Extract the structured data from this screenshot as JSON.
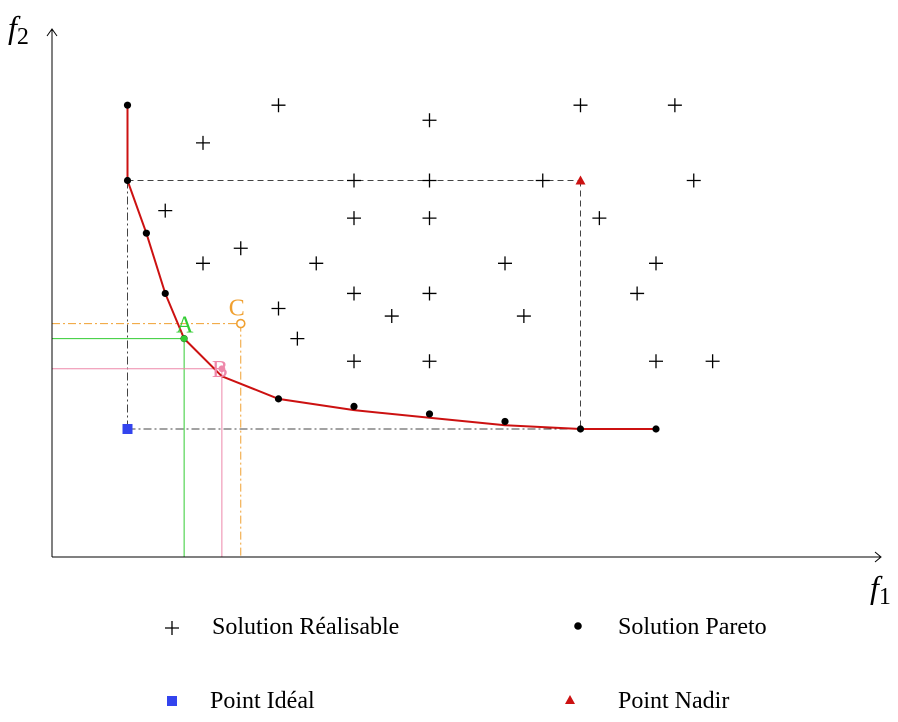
{
  "chart_data": {
    "type": "scatter",
    "title": "",
    "xlabel": "f",
    "xlabel_sub": "1",
    "ylabel": "f",
    "ylabel_sub": "2",
    "xlim": [
      0,
      11
    ],
    "ylim": [
      0,
      7
    ],
    "grid": false,
    "legend_position": "bottom",
    "colors": {
      "pareto_front": "#cc1111",
      "ideal": "#3344ee",
      "nadir": "#cc1111",
      "A": "#33cc33",
      "B": "#ee88aa",
      "C": "#f0a030",
      "guide": "#444444"
    },
    "feasible_points": [
      [
        3,
        6
      ],
      [
        5,
        5.8
      ],
      [
        7,
        6
      ],
      [
        8.25,
        6
      ],
      [
        2,
        5.5
      ],
      [
        8.5,
        5
      ],
      [
        4,
        5
      ],
      [
        5,
        5
      ],
      [
        6.5,
        5
      ],
      [
        1.5,
        4.6
      ],
      [
        4,
        4.5
      ],
      [
        5,
        4.5
      ],
      [
        7.25,
        4.5
      ],
      [
        2.5,
        4.1
      ],
      [
        2,
        3.9
      ],
      [
        3.5,
        3.9
      ],
      [
        6,
        3.9
      ],
      [
        8,
        3.9
      ],
      [
        4,
        3.5
      ],
      [
        5,
        3.5
      ],
      [
        7.75,
        3.5
      ],
      [
        3,
        3.3
      ],
      [
        4.5,
        3.2
      ],
      [
        6.25,
        3.2
      ],
      [
        3.25,
        2.9
      ],
      [
        4,
        2.6
      ],
      [
        5,
        2.6
      ],
      [
        8,
        2.6
      ],
      [
        8.75,
        2.6
      ]
    ],
    "pareto_points": [
      [
        1,
        6
      ],
      [
        1,
        5
      ],
      [
        1.25,
        4.3
      ],
      [
        1.5,
        3.5
      ],
      [
        1.75,
        2.9
      ],
      [
        3,
        2.1
      ],
      [
        4,
        2
      ],
      [
        5,
        1.9
      ],
      [
        6,
        1.8
      ],
      [
        7,
        1.7
      ],
      [
        8,
        1.7
      ]
    ],
    "pareto_front": [
      [
        1,
        6
      ],
      [
        1,
        5
      ],
      [
        1.25,
        4.3
      ],
      [
        1.5,
        3.5
      ],
      [
        1.75,
        2.9
      ],
      [
        2.25,
        2.4
      ],
      [
        3,
        2.1
      ],
      [
        4,
        1.95
      ],
      [
        5,
        1.85
      ],
      [
        6,
        1.75
      ],
      [
        7,
        1.7
      ],
      [
        8,
        1.7
      ]
    ],
    "ideal_point": [
      1,
      1.7
    ],
    "nadir_point": [
      7,
      5
    ],
    "special_points": [
      {
        "label": "A",
        "x": 1.75,
        "y": 2.9,
        "marker": "dot"
      },
      {
        "label": "B",
        "x": 2.25,
        "y": 2.5,
        "marker": "dot"
      },
      {
        "label": "C",
        "x": 2.5,
        "y": 3.1,
        "marker": "circle"
      }
    ],
    "legend": [
      {
        "symbol": "+",
        "label": "Solution Réalisable"
      },
      {
        "symbol": "•",
        "label": "Solution Pareto"
      },
      {
        "symbol": "square",
        "label": "Point Idéal"
      },
      {
        "symbol": "triangle",
        "label": "Point Nadir"
      }
    ]
  }
}
